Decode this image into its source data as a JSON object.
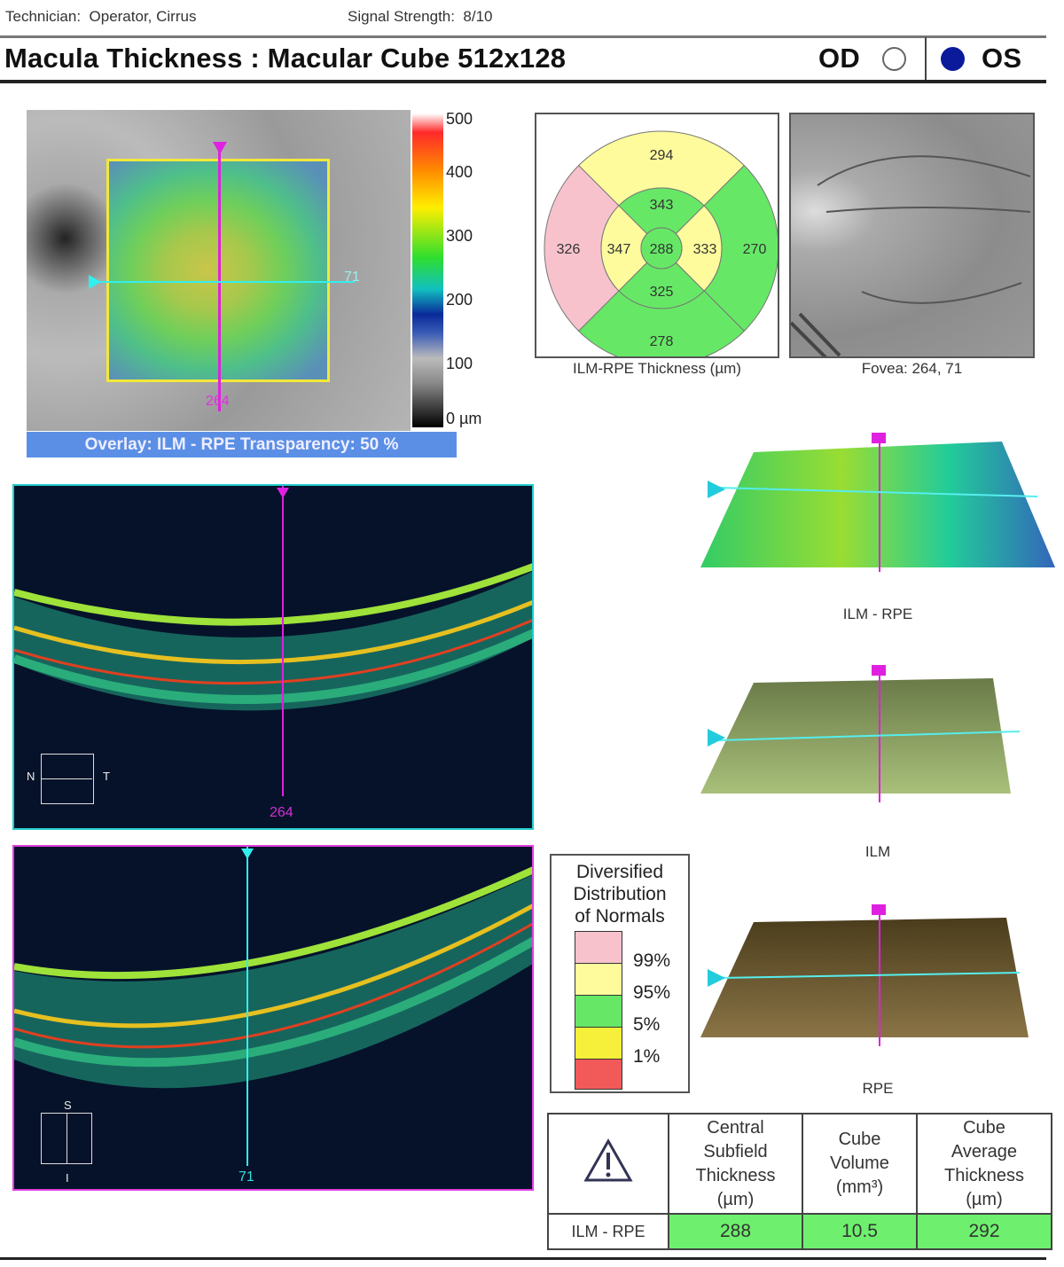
{
  "header": {
    "technician_label": "Technician:",
    "technician": "Operator, Cirrus",
    "signal_label": "Signal Strength:",
    "signal": "8/10"
  },
  "title": "Macula Thickness : Macular Cube 512x128",
  "eye": {
    "od": "OD",
    "os": "OS",
    "selected": "OS"
  },
  "fundus": {
    "h_marker": "71",
    "v_marker": "264",
    "scale": [
      "500",
      "400",
      "300",
      "200",
      "100",
      "0 µm"
    ],
    "banner": "Overlay: ILM - RPE  Transparency: 50 %"
  },
  "etdrs": {
    "caption": "ILM-RPE Thickness (µm)",
    "sectors": {
      "outer_superior": "294",
      "outer_nasal": "326",
      "outer_temporal": "270",
      "outer_inferior": "278",
      "inner_superior": "343",
      "inner_nasal": "347",
      "inner_temporal": "333",
      "inner_inferior": "325",
      "central": "288"
    },
    "colors": {
      "pink": "#f8c2cc",
      "yellow": "#fdfb9c",
      "green": "#66e866"
    }
  },
  "fovea_caption": "Fovea: 264, 71",
  "bscan1": {
    "marker": "264",
    "n": "N",
    "t": "T"
  },
  "bscan2": {
    "marker": "71",
    "s": "S",
    "i": "I"
  },
  "surfaces": {
    "ilm_rpe": "ILM - RPE",
    "ilm": "ILM",
    "rpe": "RPE"
  },
  "legend": {
    "title": [
      "Diversified",
      "Distribution",
      "of Normals"
    ],
    "levels": [
      "99%",
      "95%",
      "5%",
      "1%"
    ]
  },
  "table": {
    "headers": [
      [
        "Central",
        "Subfield",
        "Thickness",
        "(µm)"
      ],
      [
        "Cube",
        "Volume",
        "(mm³)"
      ],
      [
        "Cube",
        "Average",
        "Thickness",
        "(µm)"
      ]
    ],
    "row_label": "ILM - RPE",
    "values": [
      "288",
      "10.5",
      "292"
    ]
  }
}
